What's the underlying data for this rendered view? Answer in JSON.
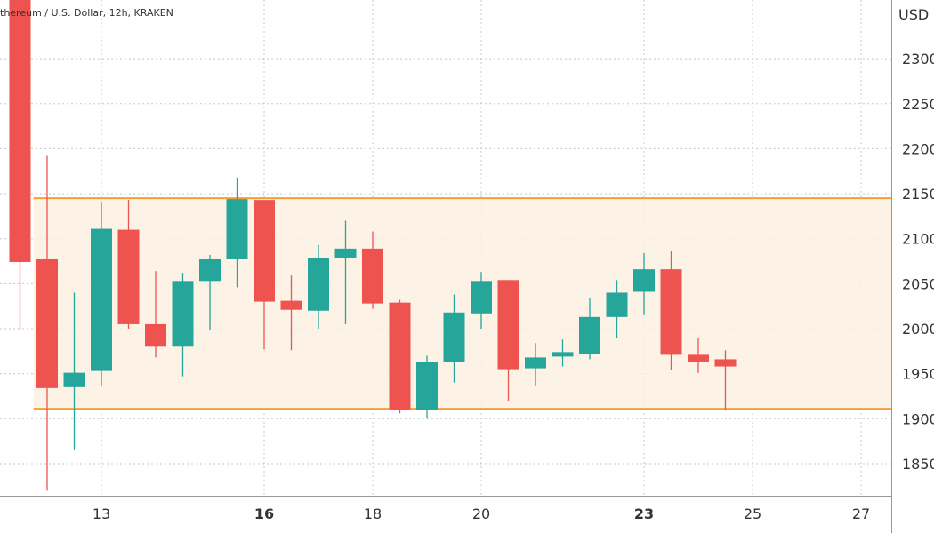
{
  "header": {
    "title": "thereum / U.S. Dollar, 12h, KRAKEN"
  },
  "chart_data": {
    "type": "candlestick",
    "title": "thereum / U.S. Dollar, 12h, KRAKEN",
    "ylabel": "USD",
    "ylim": [
      1818,
      2365
    ],
    "xlim_days": [
      11.3,
      27.6
    ],
    "yticks": [
      1850,
      1900,
      1950,
      2000,
      2050,
      2100,
      2150,
      2200,
      2250,
      2300
    ],
    "xticks": [
      {
        "day": 13,
        "label": "13",
        "bold": false
      },
      {
        "day": 16,
        "label": "16",
        "bold": true
      },
      {
        "day": 18,
        "label": "18",
        "bold": false
      },
      {
        "day": 20,
        "label": "20",
        "bold": false
      },
      {
        "day": 23,
        "label": "23",
        "bold": true
      },
      {
        "day": 25,
        "label": "25",
        "bold": false
      },
      {
        "day": 27,
        "label": "27",
        "bold": false
      }
    ],
    "grid": true,
    "colors": {
      "up": "#26a69a",
      "down": "#ef5350",
      "level": "#f5a033",
      "band": "#fdf0e2"
    },
    "range_band": {
      "upper": 2145,
      "lower": 1911,
      "start_day": 11.75
    },
    "candles": [
      {
        "day": 11.5,
        "o": 2380,
        "h": 2400,
        "l": 2000,
        "c": 2074
      },
      {
        "day": 12.0,
        "o": 2077,
        "h": 2192,
        "l": 1820,
        "c": 1934
      },
      {
        "day": 12.5,
        "o": 1935,
        "h": 2040,
        "l": 1865,
        "c": 1951
      },
      {
        "day": 13.0,
        "o": 1953,
        "h": 2141,
        "l": 1937,
        "c": 2111
      },
      {
        "day": 13.5,
        "o": 2110,
        "h": 2143,
        "l": 2000,
        "c": 2005
      },
      {
        "day": 14.0,
        "o": 2005,
        "h": 2064,
        "l": 1968,
        "c": 1980
      },
      {
        "day": 14.5,
        "o": 1980,
        "h": 2062,
        "l": 1947,
        "c": 2053
      },
      {
        "day": 15.0,
        "o": 2053,
        "h": 2082,
        "l": 1998,
        "c": 2078
      },
      {
        "day": 15.5,
        "o": 2078,
        "h": 2168,
        "l": 2046,
        "c": 2144
      },
      {
        "day": 16.0,
        "o": 2143,
        "h": 2143,
        "l": 1977,
        "c": 2030
      },
      {
        "day": 16.5,
        "o": 2031,
        "h": 2059,
        "l": 1976,
        "c": 2021
      },
      {
        "day": 17.0,
        "o": 2020,
        "h": 2093,
        "l": 2000,
        "c": 2079
      },
      {
        "day": 17.5,
        "o": 2079,
        "h": 2120,
        "l": 2005,
        "c": 2089
      },
      {
        "day": 18.0,
        "o": 2089,
        "h": 2108,
        "l": 2022,
        "c": 2028
      },
      {
        "day": 18.5,
        "o": 2029,
        "h": 2032,
        "l": 1906,
        "c": 1910
      },
      {
        "day": 19.0,
        "o": 1910,
        "h": 1970,
        "l": 1900,
        "c": 1963
      },
      {
        "day": 19.5,
        "o": 1963,
        "h": 2038,
        "l": 1940,
        "c": 2018
      },
      {
        "day": 20.0,
        "o": 2017,
        "h": 2063,
        "l": 2000,
        "c": 2053
      },
      {
        "day": 20.5,
        "o": 2054,
        "h": 2054,
        "l": 1920,
        "c": 1955
      },
      {
        "day": 21.0,
        "o": 1956,
        "h": 1984,
        "l": 1937,
        "c": 1968
      },
      {
        "day": 21.5,
        "o": 1969,
        "h": 1988,
        "l": 1958,
        "c": 1974
      },
      {
        "day": 22.0,
        "o": 1972,
        "h": 2034,
        "l": 1966,
        "c": 2013
      },
      {
        "day": 22.5,
        "o": 2013,
        "h": 2054,
        "l": 1990,
        "c": 2040
      },
      {
        "day": 23.0,
        "o": 2041,
        "h": 2084,
        "l": 2015,
        "c": 2066
      },
      {
        "day": 23.5,
        "o": 2066,
        "h": 2086,
        "l": 1954,
        "c": 1971
      },
      {
        "day": 24.0,
        "o": 1971,
        "h": 1990,
        "l": 1951,
        "c": 1963
      },
      {
        "day": 24.5,
        "o": 1966,
        "h": 1976,
        "l": 1910,
        "c": 1958
      }
    ]
  }
}
